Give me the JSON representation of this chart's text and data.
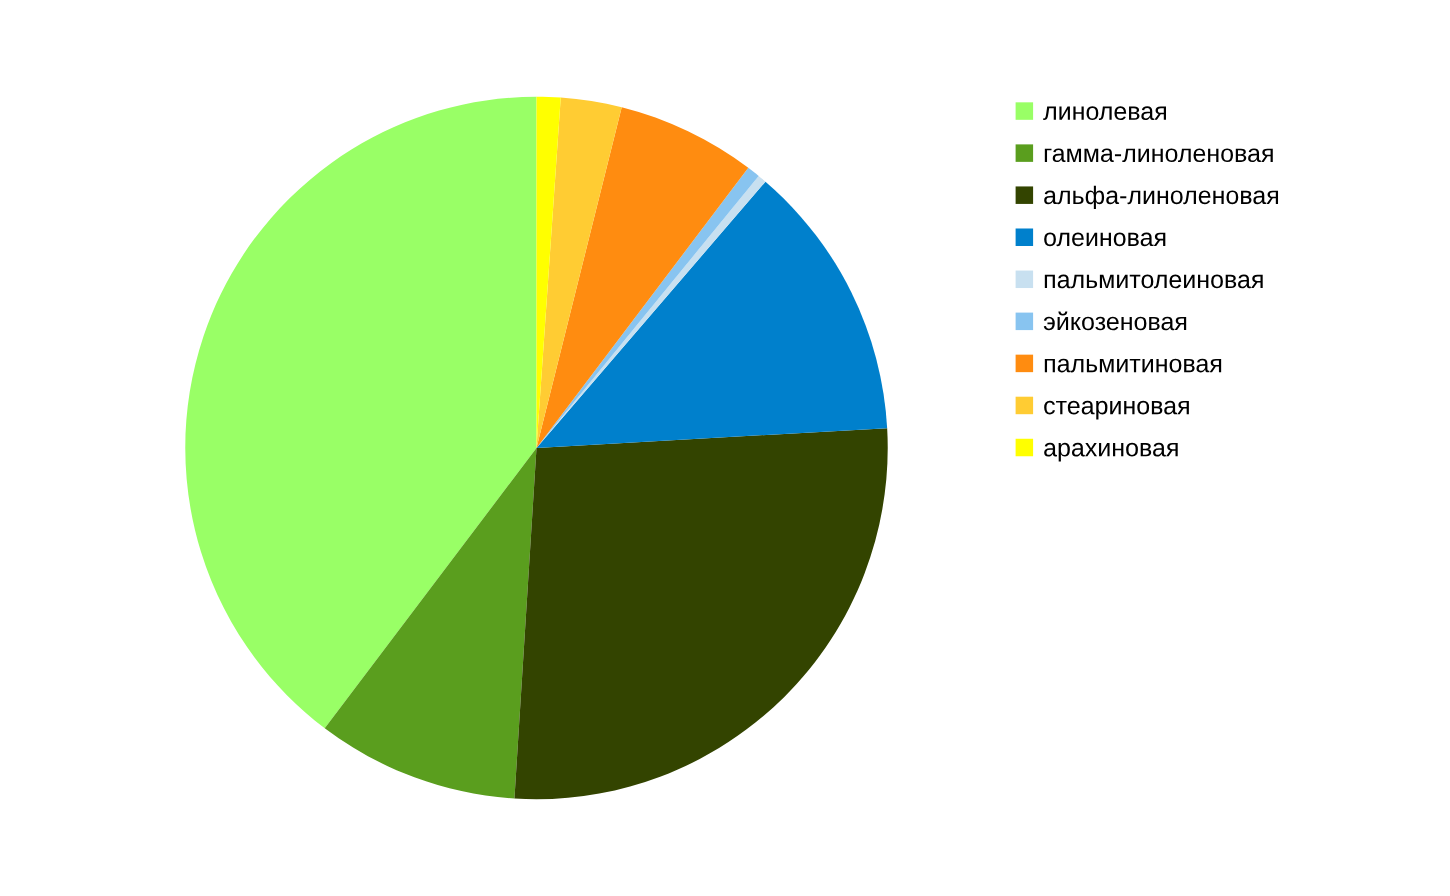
{
  "chart_data": {
    "type": "pie",
    "categories": [
      "линолевая",
      "гамма-линоленовая",
      "альфа-линоленовая",
      "олеиновая",
      "пальмитолеиновая",
      "эйкозеновая",
      "пальмитиновая",
      "стеариновая",
      "арахиновая"
    ],
    "values": [
      39.7,
      9.3,
      26.9,
      12.8,
      0.4,
      0.6,
      6.4,
      2.8,
      1.1
    ],
    "colors": [
      "#99ff66",
      "#5a9e1e",
      "#334400",
      "#0080cc",
      "#c8e0f0",
      "#88c4f0",
      "#ff8c10",
      "#ffcc33",
      "#ffff00"
    ],
    "legend": "right"
  }
}
